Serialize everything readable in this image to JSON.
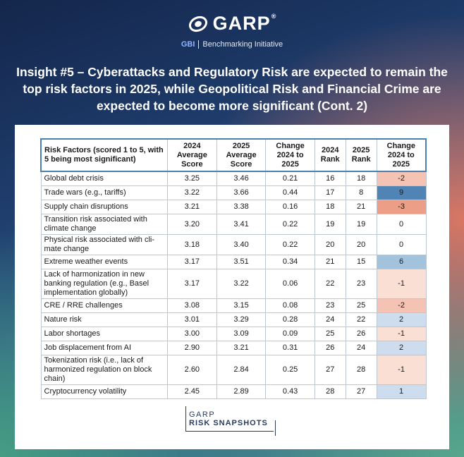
{
  "brand": {
    "name": "GARP",
    "registered": "®",
    "gbi": "GBI",
    "subtitle": "Benchmarking Initiative"
  },
  "headline": "Insight #5 – Cyberattacks and Regulatory Risk are expected to remain the top risk factors in 2025, while Geopolitical Risk and Financial Crime are expected to become more significant (Cont. 2)",
  "table": {
    "headers": {
      "factor": "Risk Factors (scored 1 to 5, with 5 being most significant)",
      "avg2024": "2024 Average Score",
      "avg2025": "2025 Average Score",
      "change_score": "Change 2024 to 2025",
      "rank2024": "2024 Rank",
      "rank2025": "2025 Rank",
      "change_rank": "Change 2024 to 2025"
    },
    "rows": [
      {
        "factor": "Global debt crisis",
        "avg2024": "3.25",
        "avg2025": "3.46",
        "change_score": "0.21",
        "rank2024": "16",
        "rank2025": "18",
        "change_rank": "-2",
        "shade": "neg-mid"
      },
      {
        "factor": "Trade wars (e.g., tariffs)",
        "avg2024": "3.22",
        "avg2025": "3.66",
        "change_score": "0.44",
        "rank2024": "17",
        "rank2025": "8",
        "change_rank": "9",
        "shade": "pos-strong"
      },
      {
        "factor": "Supply chain disruptions",
        "avg2024": "3.21",
        "avg2025": "3.38",
        "change_score": "0.16",
        "rank2024": "18",
        "rank2025": "21",
        "change_rank": "-3",
        "shade": "neg-strong"
      },
      {
        "factor": "Transition risk associated with climate change",
        "avg2024": "3.20",
        "avg2025": "3.41",
        "change_score": "0.22",
        "rank2024": "19",
        "rank2025": "19",
        "change_rank": "0",
        "shade": "zero"
      },
      {
        "factor": "Physical risk associated with cli-mate change",
        "avg2024": "3.18",
        "avg2025": "3.40",
        "change_score": "0.22",
        "rank2024": "20",
        "rank2025": "20",
        "change_rank": "0",
        "shade": "zero"
      },
      {
        "factor": "Extreme weather events",
        "avg2024": "3.17",
        "avg2025": "3.51",
        "change_score": "0.34",
        "rank2024": "21",
        "rank2025": "15",
        "change_rank": "6",
        "shade": "pos-mid"
      },
      {
        "factor": "Lack of harmonization in new banking regulation (e.g., Basel implementation globally)",
        "avg2024": "3.17",
        "avg2025": "3.22",
        "change_score": "0.06",
        "rank2024": "22",
        "rank2025": "23",
        "change_rank": "-1",
        "shade": "neg-light"
      },
      {
        "factor": "CRE / RRE challenges",
        "avg2024": "3.08",
        "avg2025": "3.15",
        "change_score": "0.08",
        "rank2024": "23",
        "rank2025": "25",
        "change_rank": "-2",
        "shade": "neg-mid"
      },
      {
        "factor": "Nature risk",
        "avg2024": "3.01",
        "avg2025": "3.29",
        "change_score": "0.28",
        "rank2024": "24",
        "rank2025": "22",
        "change_rank": "2",
        "shade": "pos-light"
      },
      {
        "factor": "Labor shortages",
        "avg2024": "3.00",
        "avg2025": "3.09",
        "change_score": "0.09",
        "rank2024": "25",
        "rank2025": "26",
        "change_rank": "-1",
        "shade": "neg-light"
      },
      {
        "factor": "Job displacement from AI",
        "avg2024": "2.90",
        "avg2025": "3.21",
        "change_score": "0.31",
        "rank2024": "26",
        "rank2025": "24",
        "change_rank": "2",
        "shade": "pos-light"
      },
      {
        "factor": "Tokenization risk (i.e., lack of harmonized regulation on block chain)",
        "avg2024": "2.60",
        "avg2025": "2.84",
        "change_score": "0.25",
        "rank2024": "27",
        "rank2025": "28",
        "change_rank": "-1",
        "shade": "neg-light"
      },
      {
        "factor": "Cryptocurrency volatility",
        "avg2024": "2.45",
        "avg2025": "2.89",
        "change_score": "0.43",
        "rank2024": "28",
        "rank2025": "27",
        "change_rank": "1",
        "shade": "pos-light"
      }
    ]
  },
  "footer": {
    "line1": "GARP",
    "line2": "RISK SNAPSHOTS"
  },
  "colors": {
    "neg-strong": "#ec9f86",
    "neg-mid": "#f4c3b3",
    "neg-light": "#fadfd5",
    "zero": "#ffffff",
    "pos-light": "#cddded",
    "pos-mid": "#a3c2dc",
    "pos-strong": "#4f84b5"
  }
}
